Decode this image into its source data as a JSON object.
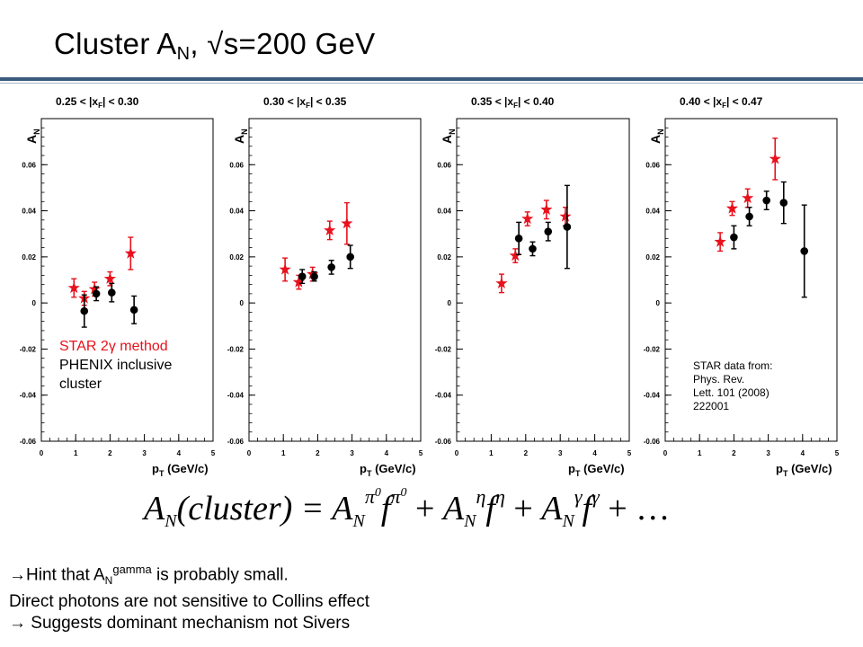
{
  "title": {
    "main": "Cluster A",
    "sub": "N",
    "rest": ", √s=200 GeV"
  },
  "legend": {
    "star_label": "STAR 2γ method",
    "phenix_label_1": "PHENIX inclusive",
    "phenix_label_2": "cluster"
  },
  "source": {
    "line1": "STAR data from:",
    "line2": "Phys. Rev.",
    "line3": "Lett. 101 (2008)",
    "line4": "222001"
  },
  "formula": {
    "lhs": "A",
    "lhs_sub": "N",
    "lhs_arg": "(cluster) =",
    "t1_sup": "π",
    "t1_sup_sup": "0",
    "t1_f": "f",
    "t2_sup": "η",
    "t3_sup": "γ",
    "plus": "+",
    "tail": "+ …"
  },
  "notes": {
    "line1_arrow": "→",
    "line1_pre": "Hint that A",
    "line1_sub": "N",
    "line1_sup": "gamma",
    "line1_post": " is probably small.",
    "line2": "Direct photons are not sensitive to Collins effect",
    "line3": "→  Suggests dominant mechanism not Sivers"
  },
  "colors": {
    "star": "#e8111c",
    "phenix": "#000000",
    "rule": "#3a5a7c"
  },
  "chart_data": [
    {
      "type": "scatter",
      "title": "0.25 < |x_F| < 0.30",
      "title_parts": {
        "pre": "0.25 < |x",
        "sub": "F",
        "post": "| < 0.30"
      },
      "ylabel": "A",
      "ylabel_sub": "N",
      "xlabel": "p",
      "xlabel_sub": "T",
      "xlabel_post": " (GeV/c)",
      "xlim": [
        0,
        5
      ],
      "ylim": [
        -0.06,
        0.08
      ],
      "xticks": [
        "0",
        "1",
        "2",
        "3",
        "4",
        "5"
      ],
      "yticks": [
        "-0.06",
        "-0.04",
        "-0.02",
        "0",
        "0.02",
        "0.04",
        "0.06"
      ],
      "series": [
        {
          "name": "STAR 2γ method",
          "marker": "star",
          "x": [
            0.95,
            1.25,
            1.55,
            2.0,
            2.6
          ],
          "y": [
            0.0065,
            0.002,
            0.006,
            0.0105,
            0.0215
          ],
          "err": [
            0.004,
            0.003,
            0.003,
            0.003,
            0.007
          ]
        },
        {
          "name": "PHENIX inclusive cluster",
          "marker": "circle",
          "x": [
            1.25,
            1.6,
            2.05,
            2.7
          ],
          "y": [
            -0.0035,
            0.004,
            0.0045,
            -0.003
          ],
          "err": [
            0.007,
            0.003,
            0.004,
            0.006
          ]
        }
      ]
    },
    {
      "type": "scatter",
      "title": "0.30 < |x_F| < 0.35",
      "title_parts": {
        "pre": "0.30 < |x",
        "sub": "F",
        "post": "| < 0.35"
      },
      "ylabel": "A",
      "ylabel_sub": "N",
      "xlabel": "p",
      "xlabel_sub": "T",
      "xlabel_post": " (GeV/c)",
      "xlim": [
        0,
        5
      ],
      "ylim": [
        -0.06,
        0.08
      ],
      "xticks": [
        "0",
        "1",
        "2",
        "3",
        "4",
        "5"
      ],
      "yticks": [
        "-0.06",
        "-0.04",
        "-0.02",
        "0",
        "0.02",
        "0.04",
        "0.06"
      ],
      "series": [
        {
          "name": "STAR 2γ method",
          "marker": "star",
          "x": [
            1.05,
            1.45,
            1.85,
            2.35,
            2.85
          ],
          "y": [
            0.0145,
            0.009,
            0.0125,
            0.0315,
            0.0345
          ],
          "err": [
            0.005,
            0.003,
            0.003,
            0.004,
            0.009
          ]
        },
        {
          "name": "PHENIX inclusive cluster",
          "marker": "circle",
          "x": [
            1.55,
            1.9,
            2.4,
            2.95
          ],
          "y": [
            0.0115,
            0.0115,
            0.0155,
            0.02
          ],
          "err": [
            0.003,
            0.002,
            0.003,
            0.005
          ]
        }
      ]
    },
    {
      "type": "scatter",
      "title": "0.35 < |x_F| < 0.40",
      "title_parts": {
        "pre": "0.35 < |x",
        "sub": "F",
        "post": "| < 0.40"
      },
      "ylabel": "A",
      "ylabel_sub": "N",
      "xlabel": "p",
      "xlabel_sub": "T",
      "xlabel_post": " (GeV/c)",
      "xlim": [
        0,
        5
      ],
      "ylim": [
        -0.06,
        0.08
      ],
      "xticks": [
        "0",
        "1",
        "2",
        "3",
        "4",
        "5"
      ],
      "yticks": [
        "-0.06",
        "-0.04",
        "-0.02",
        "0",
        "0.02",
        "0.04",
        "0.06"
      ],
      "series": [
        {
          "name": "STAR 2γ method",
          "marker": "star",
          "x": [
            1.3,
            1.7,
            2.05,
            2.6,
            3.15
          ],
          "y": [
            0.0085,
            0.0205,
            0.0365,
            0.0405,
            0.0375
          ],
          "err": [
            0.004,
            0.003,
            0.003,
            0.004,
            0.004
          ]
        },
        {
          "name": "PHENIX inclusive cluster",
          "marker": "circle",
          "x": [
            1.8,
            2.2,
            2.65,
            3.2
          ],
          "y": [
            0.028,
            0.0235,
            0.031,
            0.033
          ],
          "err": [
            0.007,
            0.003,
            0.004,
            0.018
          ]
        }
      ]
    },
    {
      "type": "scatter",
      "title": "0.40 < |x_F| < 0.47",
      "title_parts": {
        "pre": "0.40 < |x",
        "sub": "F",
        "post": "| < 0.47"
      },
      "ylabel": "A",
      "ylabel_sub": "N",
      "xlabel": "p",
      "xlabel_sub": "T",
      "xlabel_post": " (GeV/c)",
      "xlim": [
        0,
        5
      ],
      "ylim": [
        -0.06,
        0.08
      ],
      "xticks": [
        "0",
        "1",
        "2",
        "3",
        "4",
        "5"
      ],
      "yticks": [
        "-0.06",
        "-0.04",
        "-0.02",
        "0",
        "0.02",
        "0.04",
        "0.06"
      ],
      "series": [
        {
          "name": "STAR 2γ method",
          "marker": "star",
          "x": [
            1.6,
            1.95,
            2.4,
            3.2
          ],
          "y": [
            0.0265,
            0.041,
            0.0455,
            0.0625
          ],
          "err": [
            0.004,
            0.003,
            0.004,
            0.009
          ]
        },
        {
          "name": "PHENIX inclusive cluster",
          "marker": "circle",
          "x": [
            2.0,
            2.45,
            2.95,
            3.45,
            4.05
          ],
          "y": [
            0.0285,
            0.0375,
            0.0445,
            0.0435,
            0.0225
          ],
          "err": [
            0.005,
            0.004,
            0.004,
            0.009,
            0.02
          ]
        }
      ]
    }
  ]
}
